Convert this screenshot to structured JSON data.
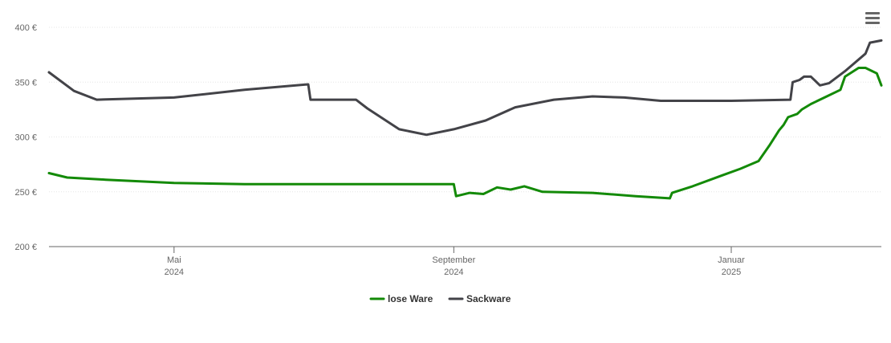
{
  "chart_data": {
    "type": "line",
    "currency_suffix": " €",
    "y_ticks": [
      200,
      250,
      300,
      350,
      400
    ],
    "y_tick_labels": [
      "200 €",
      "250 €",
      "300 €",
      "350 €",
      "400 €"
    ],
    "ylim": [
      200,
      400
    ],
    "x_range": [
      "2024-03-07",
      "2025-03-08"
    ],
    "x_ticks": [
      {
        "date": "2024-05-01",
        "label": "Mai",
        "year": "2024"
      },
      {
        "date": "2024-09-01",
        "label": "September",
        "year": "2024"
      },
      {
        "date": "2025-01-01",
        "label": "Januar",
        "year": "2025"
      }
    ],
    "grid": true,
    "legend_position": "bottom-center",
    "series": [
      {
        "name": "lose Ware",
        "color": "#138a07",
        "points": [
          [
            "2024-03-07",
            267
          ],
          [
            "2024-03-15",
            263
          ],
          [
            "2024-04-01",
            261
          ],
          [
            "2024-05-01",
            258
          ],
          [
            "2024-06-01",
            257
          ],
          [
            "2024-07-01",
            257
          ],
          [
            "2024-08-01",
            257
          ],
          [
            "2024-09-01",
            257
          ],
          [
            "2024-09-02",
            246
          ],
          [
            "2024-09-08",
            249
          ],
          [
            "2024-09-14",
            248
          ],
          [
            "2024-09-20",
            254
          ],
          [
            "2024-09-26",
            252
          ],
          [
            "2024-10-02",
            255
          ],
          [
            "2024-10-10",
            250
          ],
          [
            "2024-11-01",
            249
          ],
          [
            "2024-11-20",
            246
          ],
          [
            "2024-12-05",
            244
          ],
          [
            "2024-12-06",
            249
          ],
          [
            "2024-12-15",
            255
          ],
          [
            "2024-12-28",
            265
          ],
          [
            "2025-01-05",
            271
          ],
          [
            "2025-01-13",
            278
          ],
          [
            "2025-01-18",
            293
          ],
          [
            "2025-01-22",
            306
          ],
          [
            "2025-01-24",
            311
          ],
          [
            "2025-01-26",
            318
          ],
          [
            "2025-01-30",
            321
          ],
          [
            "2025-02-01",
            325
          ],
          [
            "2025-02-05",
            330
          ],
          [
            "2025-02-12",
            337
          ],
          [
            "2025-02-18",
            343
          ],
          [
            "2025-02-20",
            355
          ],
          [
            "2025-02-26",
            363
          ],
          [
            "2025-03-01",
            363
          ],
          [
            "2025-03-04",
            360
          ],
          [
            "2025-03-06",
            358
          ],
          [
            "2025-03-08",
            347
          ]
        ]
      },
      {
        "name": "Sackware",
        "color": "#434348",
        "points": [
          [
            "2024-03-07",
            359
          ],
          [
            "2024-03-18",
            342
          ],
          [
            "2024-03-28",
            334
          ],
          [
            "2024-05-01",
            336
          ],
          [
            "2024-06-01",
            343
          ],
          [
            "2024-06-29",
            348
          ],
          [
            "2024-06-30",
            334
          ],
          [
            "2024-07-20",
            334
          ],
          [
            "2024-07-25",
            326
          ],
          [
            "2024-08-08",
            307
          ],
          [
            "2024-08-20",
            302
          ],
          [
            "2024-09-01",
            307
          ],
          [
            "2024-09-15",
            315
          ],
          [
            "2024-09-28",
            327
          ],
          [
            "2024-10-15",
            334
          ],
          [
            "2024-11-01",
            337
          ],
          [
            "2024-11-15",
            336
          ],
          [
            "2024-12-01",
            333
          ],
          [
            "2025-01-01",
            333
          ],
          [
            "2025-01-27",
            334
          ],
          [
            "2025-01-28",
            350
          ],
          [
            "2025-01-31",
            352
          ],
          [
            "2025-02-02",
            355
          ],
          [
            "2025-02-05",
            355
          ],
          [
            "2025-02-09",
            347
          ],
          [
            "2025-02-13",
            349
          ],
          [
            "2025-02-20",
            360
          ],
          [
            "2025-03-01",
            376
          ],
          [
            "2025-03-03",
            386
          ],
          [
            "2025-03-08",
            388
          ]
        ]
      }
    ]
  },
  "toolbar": {
    "menu_icon": "hamburger-menu-icon"
  }
}
